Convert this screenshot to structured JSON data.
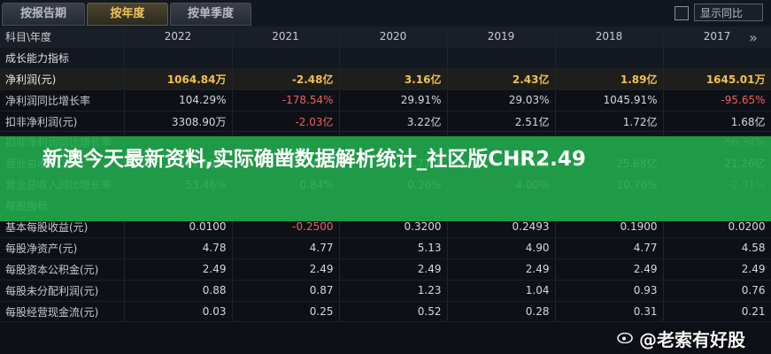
{
  "tabs": [
    {
      "label": "按报告期"
    },
    {
      "label": "按年度"
    },
    {
      "label": "按单季度"
    }
  ],
  "show_yoy": "显示同比",
  "header": {
    "label": "科目\\年度",
    "years": [
      "2022",
      "2021",
      "2020",
      "2019",
      "2018",
      "2017"
    ]
  },
  "rows": [
    {
      "type": "sec",
      "label": "成长能力指标",
      "values": [
        "",
        "",
        "",
        "",
        "",
        ""
      ]
    },
    {
      "type": "bold",
      "label": "净利润(元)",
      "values": [
        "1064.84万",
        "-2.48亿",
        "3.16亿",
        "2.43亿",
        "1.89亿",
        "1645.01万"
      ]
    },
    {
      "type": "row",
      "label": "净利润同比增长率",
      "values": [
        "104.29%",
        "-178.54%",
        "29.91%",
        "29.03%",
        "1045.91%",
        "-95.65%"
      ]
    },
    {
      "type": "row",
      "label": "扣非净利润(元)",
      "values": [
        "3308.90万",
        "-2.03亿",
        "3.22亿",
        "2.51亿",
        "1.72亿",
        "1.68亿"
      ]
    },
    {
      "type": "row",
      "label": "扣非净利润同比增长率",
      "values": [
        "",
        "",
        "",
        "",
        "",
        "-56.34%"
      ]
    },
    {
      "type": "row",
      "label": "营业总收入(元)",
      "values": [
        "41.43亿",
        "27.00亿",
        "26.77亿",
        "26.70亿",
        "25.68亿",
        "21.26亿"
      ]
    },
    {
      "type": "row",
      "label": "营业总收入同比增长率",
      "values": [
        "53.46%",
        "0.84%",
        "0.26%",
        "4.00%",
        "20.76%",
        "-2.31%"
      ]
    },
    {
      "type": "sec",
      "label": "每股指标",
      "values": [
        "",
        "",
        "",
        "",
        "",
        ""
      ]
    },
    {
      "type": "row",
      "label": "基本每股收益(元)",
      "values": [
        "0.0100",
        "-0.2500",
        "0.3200",
        "0.2493",
        "0.1900",
        "0.0200"
      ]
    },
    {
      "type": "row",
      "label": "每股净资产(元)",
      "values": [
        "4.78",
        "4.77",
        "5.13",
        "4.90",
        "4.77",
        "4.58"
      ]
    },
    {
      "type": "row",
      "label": "每股资本公积金(元)",
      "values": [
        "2.49",
        "2.49",
        "2.49",
        "2.49",
        "2.49",
        "2.49"
      ]
    },
    {
      "type": "row",
      "label": "每股未分配利润(元)",
      "values": [
        "0.88",
        "0.87",
        "1.23",
        "1.04",
        "0.93",
        "0.76"
      ]
    },
    {
      "type": "row",
      "label": "每股经营现金流(元)",
      "values": [
        "0.03",
        "0.25",
        "0.52",
        "0.28",
        "0.31",
        "0.21"
      ]
    }
  ],
  "banner": "新澳今天最新资料,实际确凿数据解析统计_社区版CHR2.49",
  "watermark": "@老索有好股"
}
